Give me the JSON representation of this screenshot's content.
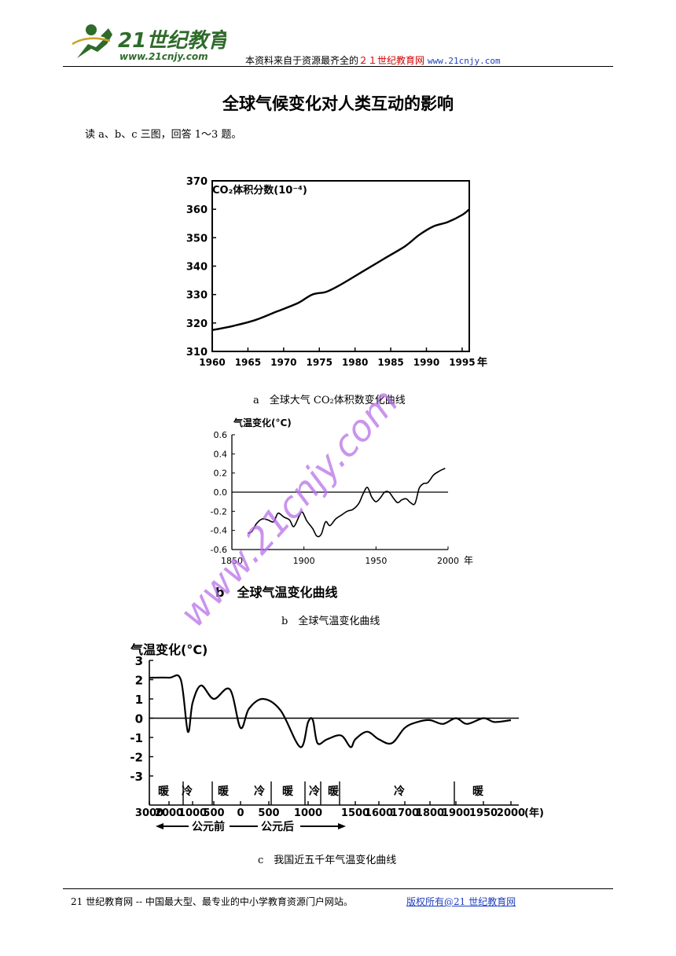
{
  "header": {
    "logo_text": "21世纪教育",
    "logo_url": "www.21cnjy.com",
    "prefix": "本资料来自于资源最齐全的",
    "site_name": "２１世纪教育网",
    "site_url": "www.21cnjy.com"
  },
  "title": "全球气候变化对人类互动的影响",
  "intro": "读 a、b、c 三图，回答 1～3 题。",
  "watermark": "www.21cnjy.com",
  "figure_a": {
    "caption": "a　全球大气 CO₂体积数变化曲线"
  },
  "figure_b": {
    "inner_caption": "b　全球气温变化曲线",
    "caption": "b　全球气温变化曲线"
  },
  "figure_c": {
    "caption": "c　我国近五千年气温变化曲线",
    "periods": [
      "暖",
      "冷",
      "暖",
      "冷",
      "暖",
      "冷",
      "暖",
      "冷",
      "暖"
    ],
    "era_before": "公元前",
    "era_after": "公元后"
  },
  "chart_data": [
    {
      "type": "line",
      "ylabel": "CO₂体积分数(10⁻⁴)",
      "xlabel": "年",
      "x_ticks": [
        "1960",
        "1965",
        "1970",
        "1975",
        "1980",
        "1985",
        "1990",
        "1995"
      ],
      "y_ticks": [
        "310",
        "320",
        "330",
        "340",
        "350",
        "360",
        "370"
      ],
      "xlim": [
        1960,
        1996
      ],
      "ylim": [
        310,
        370
      ],
      "grid": false,
      "series": [
        {
          "x": [
            1960,
            1963,
            1966,
            1969,
            1972,
            1974,
            1976,
            1978,
            1981,
            1984,
            1987,
            1989,
            1991,
            1993,
            1995,
            1996
          ],
          "y": [
            317.5,
            319,
            321,
            324,
            327,
            330,
            331,
            333.5,
            338,
            342.5,
            347,
            351,
            354,
            355.5,
            358,
            360
          ]
        }
      ]
    },
    {
      "type": "line",
      "ylabel": "气温变化(°C)",
      "xlabel": "年",
      "x_ticks": [
        "1850",
        "1900",
        "1950",
        "2000"
      ],
      "y_ticks": [
        "0.6",
        "0.4",
        "0.2",
        "0.0",
        "-0.2",
        "-0.4",
        "-0.6"
      ],
      "xlim": [
        1850,
        2000
      ],
      "ylim": [
        -0.6,
        0.6
      ],
      "grid": false,
      "series": [
        {
          "x": [
            1861,
            1864,
            1867,
            1871,
            1875,
            1879,
            1882,
            1886,
            1890,
            1893,
            1897,
            1899,
            1902,
            1906,
            1909,
            1912,
            1915,
            1918,
            1922,
            1926,
            1930,
            1934,
            1938,
            1941,
            1944,
            1947,
            1950,
            1953,
            1956,
            1959,
            1962,
            1965,
            1968,
            1971,
            1974,
            1977,
            1980,
            1983,
            1986,
            1990,
            1994,
            1998
          ],
          "y": [
            -0.43,
            -0.41,
            -0.33,
            -0.28,
            -0.29,
            -0.31,
            -0.22,
            -0.26,
            -0.29,
            -0.36,
            -0.24,
            -0.21,
            -0.3,
            -0.38,
            -0.46,
            -0.44,
            -0.31,
            -0.35,
            -0.28,
            -0.24,
            -0.2,
            -0.18,
            -0.12,
            -0.02,
            0.05,
            -0.05,
            -0.1,
            -0.06,
            0.0,
            0.0,
            -0.06,
            -0.11,
            -0.08,
            -0.07,
            -0.11,
            -0.12,
            0.04,
            0.09,
            0.1,
            0.18,
            0.22,
            0.25
          ]
        }
      ]
    },
    {
      "type": "line",
      "ylabel": "气温变化(°C)",
      "xlabel": "(年)",
      "x_ticks": [
        "3000",
        "2000",
        "1000",
        "500",
        "0",
        "500",
        "1000",
        "1500",
        "1600",
        "1700",
        "1800",
        "1900",
        "1950",
        "2000"
      ],
      "y_ticks": [
        "3",
        "2",
        "1",
        "0",
        "-1",
        "-2",
        "-3"
      ],
      "ylim": [
        -3,
        3
      ],
      "grid": false,
      "series": [
        {
          "x": [
            "3000BC",
            "2000BC",
            "1500BC",
            "1200BC",
            "1000BC",
            "800BC",
            "500BC",
            "200BC",
            "0",
            "150",
            "400",
            "650",
            "900",
            "1000",
            "1050",
            "1100",
            "1200",
            "1350",
            "1450",
            "1500",
            "1550",
            "1600",
            "1650",
            "1700",
            "1750",
            "1800",
            "1850",
            "1900",
            "1920",
            "1950",
            "1970",
            "2000"
          ],
          "y": [
            2.1,
            2.1,
            2.0,
            -0.7,
            0.8,
            1.7,
            1.0,
            1.5,
            -0.5,
            0.5,
            1.0,
            0.4,
            -1.5,
            -0.2,
            -0.1,
            -1.3,
            -1.1,
            -0.9,
            -1.5,
            -1.1,
            -0.7,
            -1.1,
            -1.3,
            -0.5,
            -0.2,
            -0.1,
            -0.3,
            0.0,
            -0.3,
            0.0,
            -0.2,
            -0.1
          ]
        }
      ]
    }
  ]
}
